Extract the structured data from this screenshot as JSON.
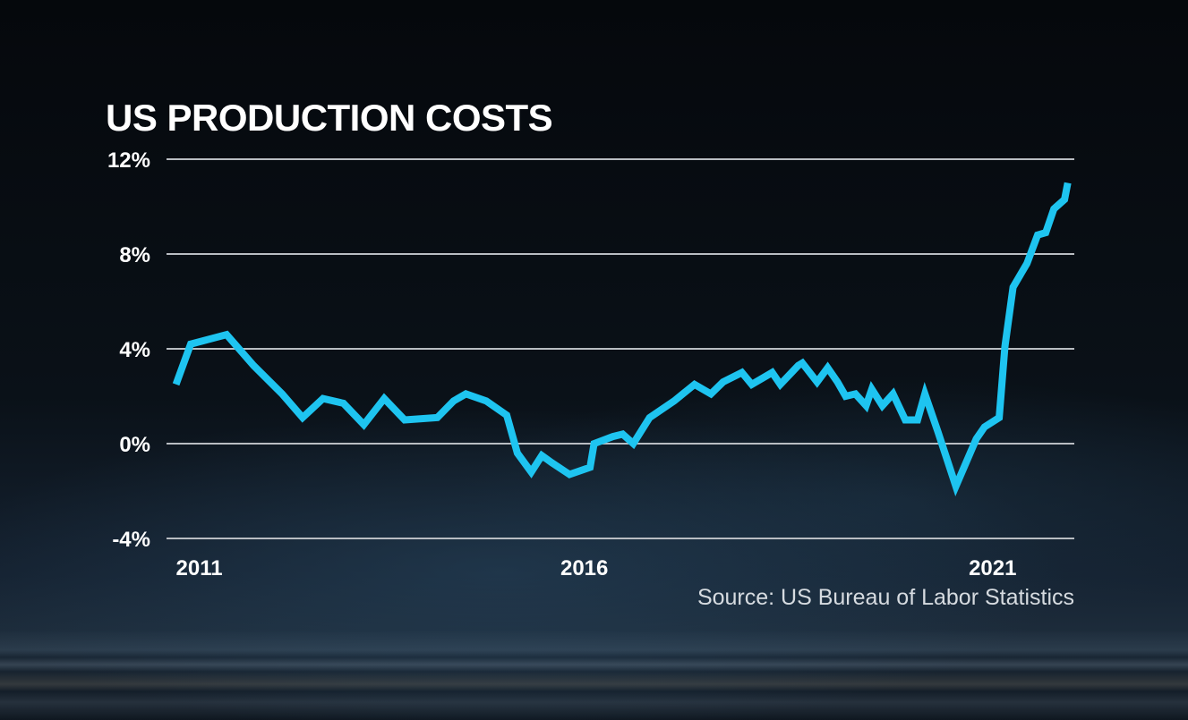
{
  "chart_data": {
    "type": "line",
    "title": "US PRODUCTION COSTS",
    "source": "Source: US Bureau of Labor Statistics",
    "y_ticks": [
      {
        "value": 12,
        "label": "12%"
      },
      {
        "value": 8,
        "label": "8%"
      },
      {
        "value": 4,
        "label": "4%"
      },
      {
        "value": 0,
        "label": "0%"
      },
      {
        "value": -4,
        "label": "-4%"
      }
    ],
    "x_ticks": [
      {
        "value": 2011,
        "label": "2011"
      },
      {
        "value": 2016,
        "label": "2016"
      },
      {
        "value": 2021,
        "label": "2021"
      }
    ],
    "xlim": [
      2010.95,
      2022.0
    ],
    "ylim": [
      -4,
      12
    ],
    "grid": true,
    "line_color": "#1ec4f0",
    "series": [
      {
        "x": [
          2011.0,
          2011.18,
          2011.62,
          2011.95,
          2012.3,
          2012.55,
          2012.8,
          2013.05,
          2013.3,
          2013.55,
          2013.8,
          2014.2,
          2014.4,
          2014.55,
          2014.8,
          2015.05,
          2015.18,
          2015.35,
          2015.48,
          2015.6,
          2015.82,
          2016.07,
          2016.12,
          2016.35,
          2016.47,
          2016.6,
          2016.8,
          2017.1,
          2017.35,
          2017.55,
          2017.7,
          2017.93,
          2018.05,
          2018.3,
          2018.4,
          2018.62,
          2018.67,
          2018.85,
          2018.98,
          2019.1,
          2019.2,
          2019.32,
          2019.45,
          2019.52,
          2019.65,
          2019.78,
          2019.93,
          2020.08,
          2020.17,
          2020.33,
          2020.55,
          2020.8,
          2020.9,
          2021.08,
          2021.15,
          2021.25,
          2021.42,
          2021.55,
          2021.65,
          2021.75,
          2021.88,
          2021.92
        ],
        "y": [
          2.5,
          4.2,
          4.6,
          3.3,
          2.1,
          1.1,
          1.9,
          1.7,
          0.8,
          1.9,
          1.0,
          1.1,
          1.8,
          2.1,
          1.8,
          1.2,
          -0.4,
          -1.2,
          -0.5,
          -0.8,
          -1.3,
          -1.0,
          0.0,
          0.3,
          0.4,
          0.0,
          1.1,
          1.8,
          2.5,
          2.1,
          2.6,
          3.0,
          2.5,
          3.0,
          2.5,
          3.3,
          3.4,
          2.6,
          3.2,
          2.6,
          2.0,
          2.1,
          1.6,
          2.3,
          1.6,
          2.1,
          1.0,
          1.0,
          2.1,
          0.5,
          -1.8,
          0.2,
          0.7,
          1.1,
          4.1,
          6.6,
          7.6,
          8.8,
          8.9,
          9.9,
          10.3,
          11.0
        ]
      }
    ]
  }
}
